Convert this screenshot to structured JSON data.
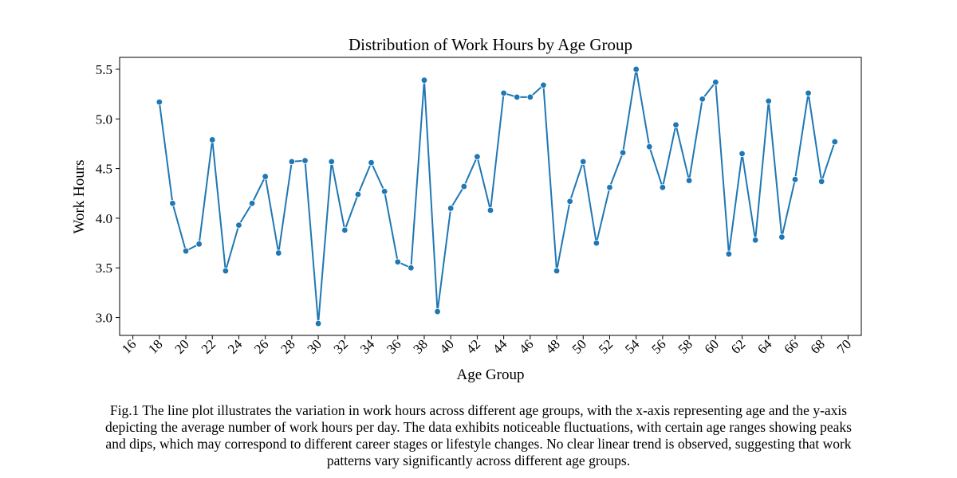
{
  "chart_data": {
    "type": "line",
    "title": "Distribution of Work Hours by Age Group",
    "xlabel": "Age Group",
    "ylabel": "Work Hours",
    "xlim": [
      15,
      71
    ],
    "ylim": [
      2.82,
      5.62
    ],
    "xticks": [
      16,
      18,
      20,
      22,
      24,
      26,
      28,
      30,
      32,
      34,
      36,
      38,
      40,
      42,
      44,
      46,
      48,
      50,
      52,
      54,
      56,
      58,
      60,
      62,
      64,
      66,
      68,
      70
    ],
    "yticks": [
      3.0,
      3.5,
      4.0,
      4.5,
      5.0,
      5.5
    ],
    "grid": false,
    "color": "#1f77b4",
    "series": [
      {
        "x": [
          18,
          19,
          20,
          21,
          22,
          23,
          24,
          25,
          26,
          27,
          28,
          29,
          30,
          31,
          32,
          33,
          34,
          35,
          36,
          37,
          38,
          39,
          40,
          41,
          42,
          43,
          44,
          45,
          46,
          47,
          48,
          49,
          50,
          51,
          52,
          53,
          54,
          55,
          56,
          57,
          58,
          59,
          60,
          61,
          62,
          63,
          64,
          65,
          66,
          67,
          68,
          69
        ],
        "y": [
          5.17,
          4.15,
          3.67,
          3.74,
          4.79,
          3.47,
          3.93,
          4.15,
          4.42,
          3.65,
          4.57,
          4.58,
          2.94,
          4.57,
          3.88,
          4.24,
          4.56,
          4.27,
          3.56,
          3.5,
          5.39,
          3.06,
          4.1,
          4.32,
          4.62,
          4.08,
          5.26,
          5.22,
          5.22,
          5.34,
          3.47,
          4.17,
          4.57,
          3.75,
          4.31,
          4.66,
          5.5,
          4.72,
          4.31,
          4.94,
          4.38,
          5.2,
          5.37,
          3.64,
          4.65,
          3.78,
          5.18,
          3.81,
          4.39,
          5.26,
          4.37,
          4.77
        ]
      }
    ]
  },
  "caption": "Fig.1 The line plot illustrates the variation in work hours across different age groups, with the x-axis representing age and the y-axis depicting the average number of work hours per day. The data exhibits noticeable fluctuations, with certain age ranges showing peaks and dips, which may correspond to different career stages or lifestyle changes. No clear linear trend is observed, suggesting that work patterns vary significantly across different age groups."
}
